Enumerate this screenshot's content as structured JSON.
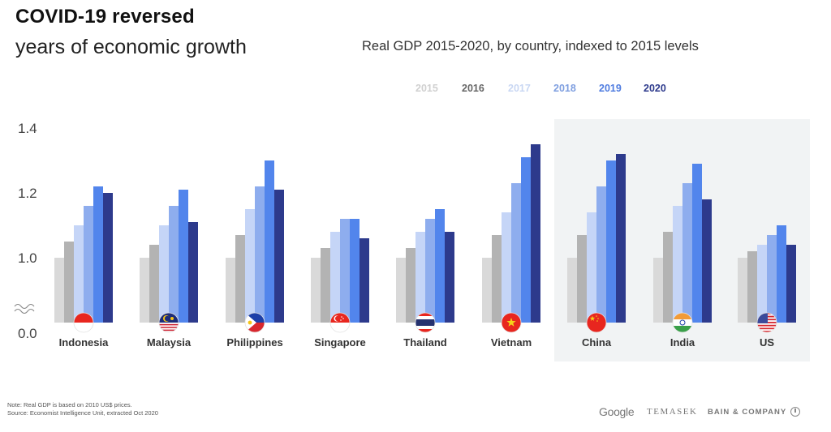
{
  "header": {
    "title_bold": "COVID-19 reversed",
    "title_light": "years of economic growth",
    "subtitle": "Real GDP 2015-2020, by country, indexed to 2015 levels"
  },
  "chart_data": {
    "type": "bar",
    "title": "Real GDP 2015-2020, by country, indexed to 2015 levels",
    "xlabel": "",
    "ylabel": "",
    "ylim": [
      0.0,
      1.4
    ],
    "axis_break": "between 0.0 and 1.0",
    "y_ticks": [
      "0.0",
      "1.0",
      "1.2",
      "1.4"
    ],
    "grid": false,
    "legend_position": "top-right",
    "categories": [
      "Indonesia",
      "Malaysia",
      "Philippines",
      "Singapore",
      "Thailand",
      "Vietnam",
      "China",
      "India",
      "US"
    ],
    "highlighted_categories": [
      "China",
      "India",
      "US"
    ],
    "series": [
      {
        "name": "2015",
        "color": "#d9d9d9",
        "values": [
          1.0,
          1.0,
          1.0,
          1.0,
          1.0,
          1.0,
          1.0,
          1.0,
          1.0
        ]
      },
      {
        "name": "2016",
        "color": "#b3b3b3",
        "values": [
          1.05,
          1.04,
          1.07,
          1.03,
          1.03,
          1.07,
          1.07,
          1.08,
          1.02
        ]
      },
      {
        "name": "2017",
        "color": "#c5d5f7",
        "values": [
          1.1,
          1.1,
          1.15,
          1.08,
          1.08,
          1.14,
          1.14,
          1.16,
          1.04
        ]
      },
      {
        "name": "2018",
        "color": "#8eadee",
        "values": [
          1.16,
          1.16,
          1.22,
          1.12,
          1.12,
          1.23,
          1.22,
          1.23,
          1.07
        ]
      },
      {
        "name": "2019",
        "color": "#5285ec",
        "values": [
          1.22,
          1.21,
          1.3,
          1.12,
          1.15,
          1.31,
          1.3,
          1.29,
          1.1
        ]
      },
      {
        "name": "2020",
        "color": "#2d3a8c",
        "values": [
          1.2,
          1.11,
          1.21,
          1.06,
          1.08,
          1.35,
          1.32,
          1.18,
          1.04
        ]
      }
    ]
  },
  "legend": {
    "items": [
      {
        "label": "2015",
        "color": "#d0d0d0"
      },
      {
        "label": "2016",
        "color": "#666666"
      },
      {
        "label": "2017",
        "color": "#c9d7f3"
      },
      {
        "label": "2018",
        "color": "#7f9fe0"
      },
      {
        "label": "2019",
        "color": "#4f7ce0"
      },
      {
        "label": "2020",
        "color": "#2d3a8c"
      }
    ]
  },
  "flags": {
    "Indonesia": "indonesia-flag-icon",
    "Malaysia": "malaysia-flag-icon",
    "Philippines": "philippines-flag-icon",
    "Singapore": "singapore-flag-icon",
    "Thailand": "thailand-flag-icon",
    "Vietnam": "vietnam-flag-icon",
    "China": "china-flag-icon",
    "India": "india-flag-icon",
    "US": "us-flag-icon"
  },
  "footer": {
    "note": "Note: Real GDP is based on 2010 US$ prices.",
    "source": "Source: Economist Intelligence Unit, extracted Oct 2020",
    "logos": {
      "google": "Google",
      "temasek": "TEMASEK",
      "bain": "BAIN & COMPANY"
    }
  }
}
